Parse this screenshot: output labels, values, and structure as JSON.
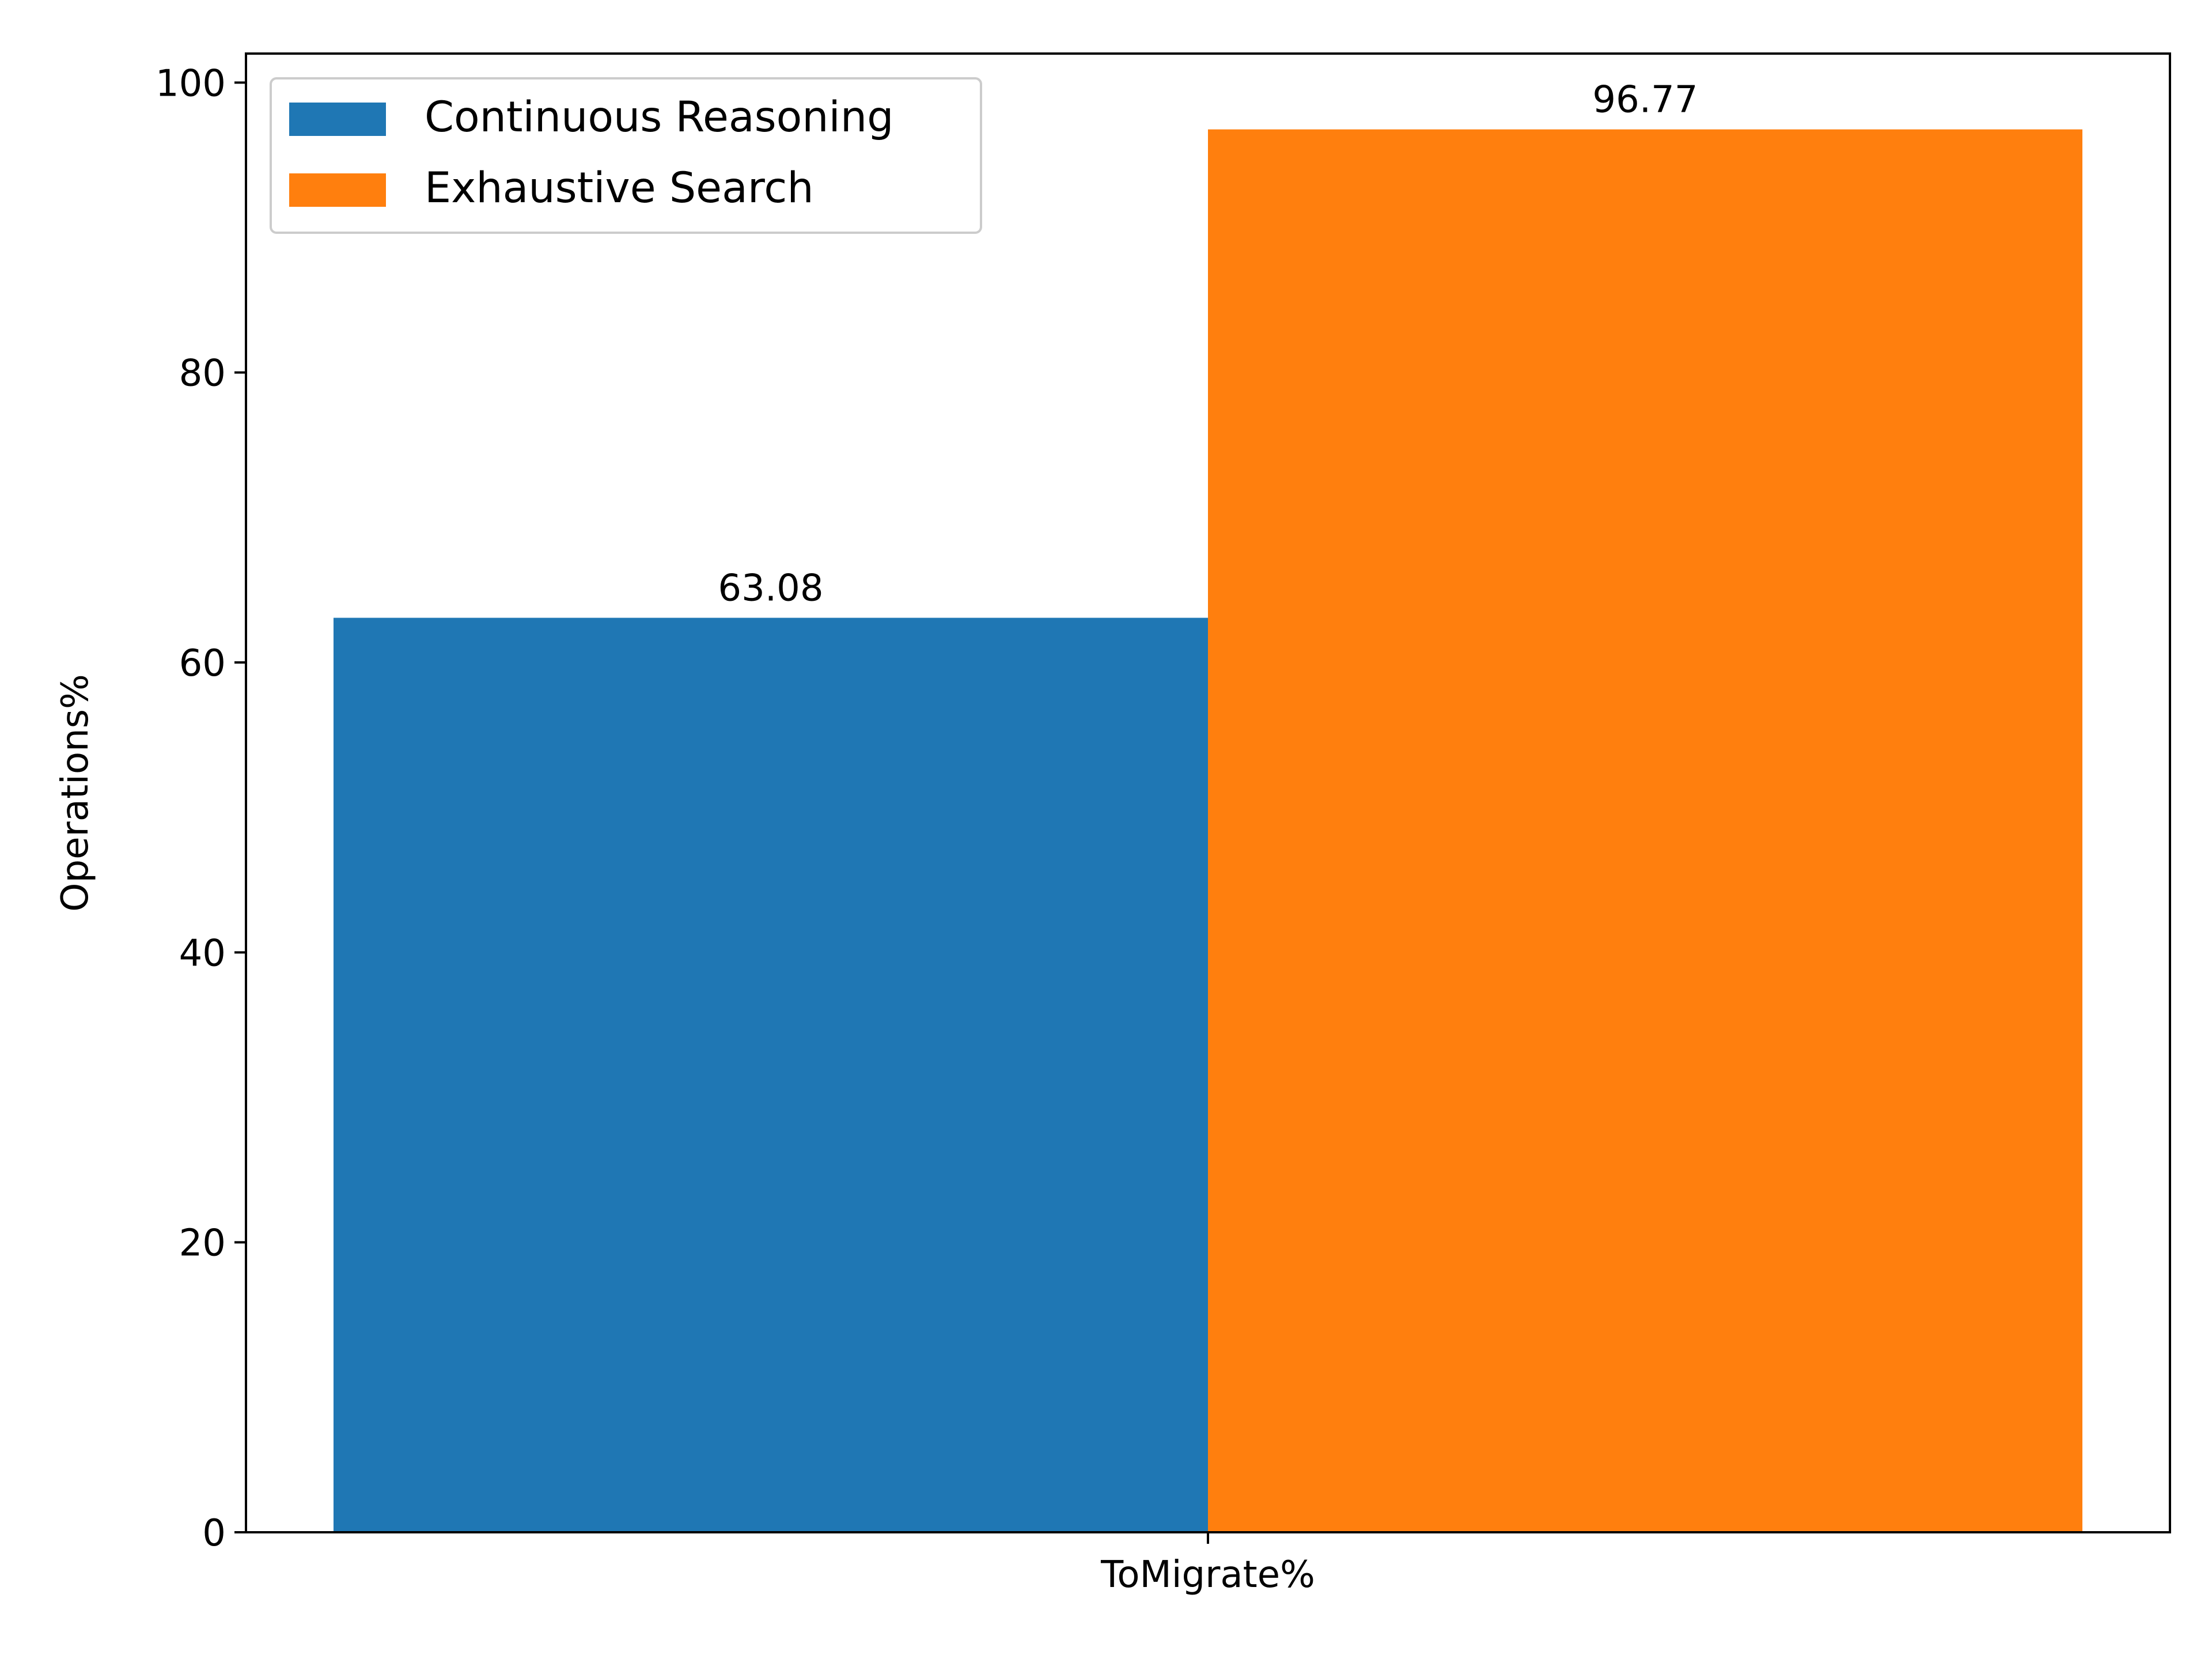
{
  "chart_data": {
    "type": "bar",
    "categories": [
      "ToMigrate%"
    ],
    "series": [
      {
        "name": "Continuous Reasoning",
        "values": [
          63.08
        ],
        "color": "#1f77b4"
      },
      {
        "name": "Exhaustive Search",
        "values": [
          96.77
        ],
        "color": "#ff7f0e"
      }
    ],
    "data_labels": [
      "63.08",
      "96.77"
    ],
    "xlabel": "",
    "ylabel": "Operations%",
    "ylim": [
      0,
      102
    ],
    "yticks": [
      0,
      20,
      40,
      60,
      80,
      100
    ],
    "ytick_labels": [
      "0",
      "20",
      "40",
      "60",
      "80",
      "100"
    ],
    "legend_position": "top-left",
    "grid": false
  }
}
